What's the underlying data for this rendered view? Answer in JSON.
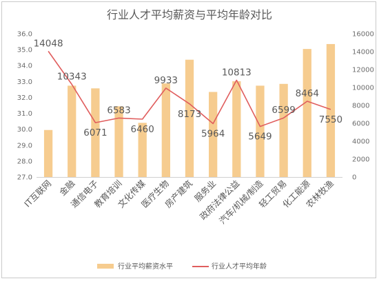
{
  "chart_data": {
    "type": "bar+line",
    "title": "行业人才平均薪资与平均年龄对比",
    "categories": [
      "IT互联网",
      "金融",
      "通信电子",
      "教育培训",
      "文化传媒",
      "医疗生物",
      "房产建筑",
      "服务业",
      "政府法律公益",
      "汽车/机械/制造",
      "轻工贸易",
      "化工能源",
      "农林牧渔"
    ],
    "series": [
      {
        "name": "行业平均薪资水平",
        "type": "bar",
        "axis": "right",
        "color": "#f6cc8f",
        "values": [
          5250,
          10200,
          9900,
          7900,
          6050,
          10450,
          13100,
          9500,
          10700,
          10200,
          10400,
          14300,
          14850
        ]
      },
      {
        "name": "行业人才平均年龄",
        "type": "line",
        "axis": "right",
        "color": "#e05d5d",
        "values": [
          14048,
          10343,
          6071,
          6583,
          6460,
          9933,
          8173,
          5964,
          10813,
          5649,
          6599,
          8464,
          7550
        ],
        "labels": [
          "14048",
          "10343",
          "6071",
          "6583",
          "6460",
          "9933",
          "8173",
          "5964",
          "10813",
          "5649",
          "6599",
          "8464",
          "7550"
        ]
      }
    ],
    "y_left": {
      "min": 27.0,
      "max": 36.0,
      "ticks": [
        "27.0",
        "28.0",
        "29.0",
        "30.0",
        "31.0",
        "32.0",
        "33.0",
        "34.0",
        "35.0",
        "36.0"
      ]
    },
    "y_right": {
      "min": 0,
      "max": 16000,
      "ticks": [
        "0",
        "2000",
        "4000",
        "6000",
        "8000",
        "10000",
        "12000",
        "14000",
        "16000"
      ]
    },
    "grid": false,
    "legend": "bottom"
  }
}
